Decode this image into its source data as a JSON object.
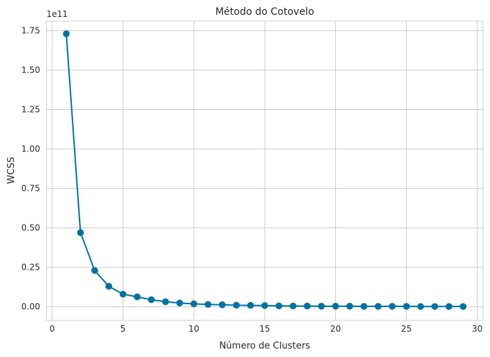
{
  "chart_data": {
    "type": "line",
    "title": "Método do Cotovelo",
    "xlabel": "Número de Clusters",
    "ylabel": "WCSS",
    "y_offset_label": "1e11",
    "xlim": [
      -0.4,
      30.4
    ],
    "ylim": [
      -0.086,
      1.81
    ],
    "x_ticks": [
      0,
      5,
      10,
      15,
      20,
      25,
      30
    ],
    "y_ticks": [
      0.0,
      0.25,
      0.5,
      0.75,
      1.0,
      1.25,
      1.5,
      1.75
    ],
    "y_tick_labels": [
      "0.00",
      "0.25",
      "0.50",
      "0.75",
      "1.00",
      "1.25",
      "1.50",
      "1.75"
    ],
    "x_tick_labels": [
      "0",
      "5",
      "10",
      "15",
      "20",
      "25",
      "30"
    ],
    "grid": true,
    "series": [
      {
        "color": "#0072a4",
        "marker": "circle",
        "x": [
          1,
          2,
          3,
          4,
          5,
          6,
          7,
          8,
          9,
          10,
          11,
          12,
          13,
          14,
          15,
          16,
          17,
          18,
          19,
          20,
          21,
          22,
          23,
          24,
          25,
          26,
          27,
          28,
          29
        ],
        "values": [
          1.73,
          0.47,
          0.23,
          0.13,
          0.08,
          0.063,
          0.045,
          0.032,
          0.024,
          0.019,
          0.015,
          0.013,
          0.01,
          0.009,
          0.008,
          0.006,
          0.005,
          0.005,
          0.004,
          0.004,
          0.004,
          0.003,
          0.003,
          0.003,
          0.003,
          0.002,
          0.002,
          0.002,
          0.002
        ]
      }
    ]
  }
}
